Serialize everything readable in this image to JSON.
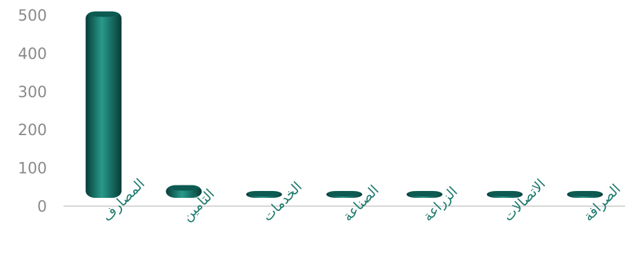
{
  "chart_data": {
    "type": "bar",
    "title": "",
    "xlabel": "",
    "ylabel": "",
    "categories": [
      "المصارف",
      "التأمين",
      "الخدمات",
      "الصناعة",
      "الزراعة",
      "الاتصالات",
      "الصرافة"
    ],
    "values": [
      510,
      55,
      12,
      22,
      10,
      15,
      16
    ],
    "ylim": [
      0,
      500
    ],
    "yticks": [
      0,
      100,
      200,
      300,
      400,
      500
    ],
    "grid": false,
    "legend": "none",
    "colors": {
      "bar": "#0f6b61",
      "bar_dark": "#063d37",
      "bar_light": "#2a9a8b",
      "bar_top": "#0c5a52",
      "axis": "#c8c8c8",
      "tick_text": "#8a8a8a",
      "category_text": "#1f7a6e"
    }
  }
}
